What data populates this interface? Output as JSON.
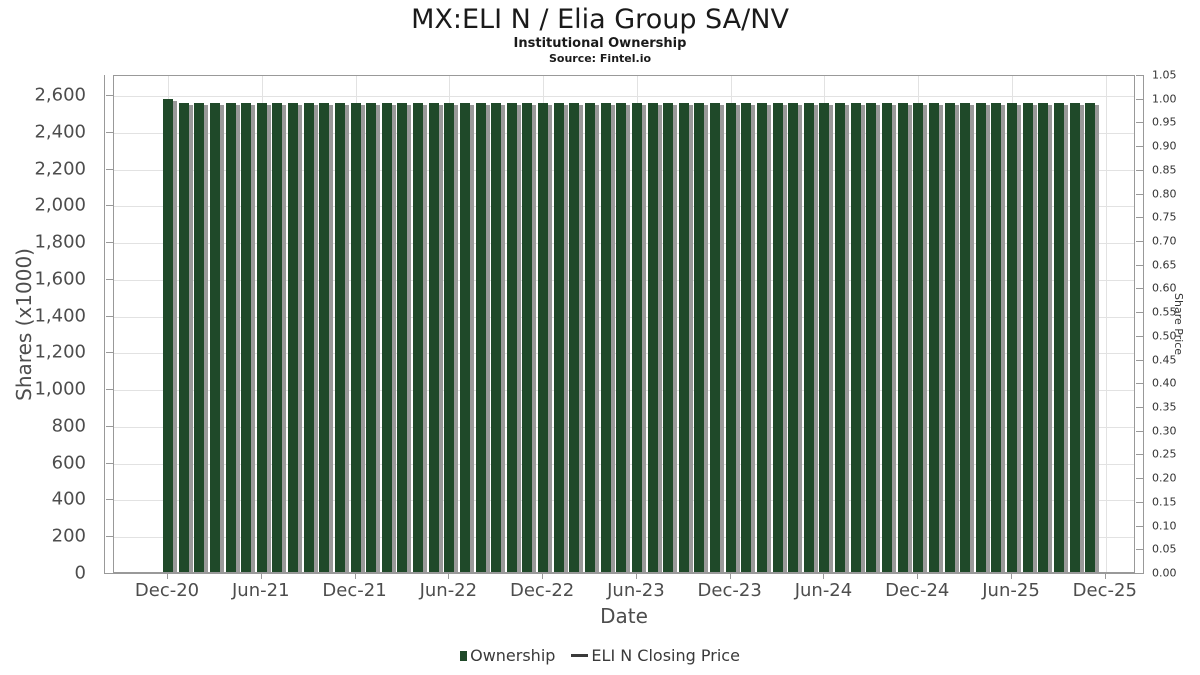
{
  "title": "MX:ELI N / Elia Group SA/NV",
  "subtitle": "Institutional Ownership",
  "source": "Source: Fintel.io",
  "colors": {
    "bar": "#1f4929",
    "bar_shadow": "#999999",
    "grid": "#e2e2e2",
    "axis": "#999999",
    "tick_text": "#4d4d4d",
    "legend_text": "#3a3a3a",
    "line_swatch": "#3a3a3a"
  },
  "chart_data": {
    "type": "bar",
    "title": "MX:ELI N / Elia Group SA/NV",
    "subtitle": "Institutional Ownership",
    "source": "Source: Fintel.io",
    "xlabel": "Date",
    "grid": true,
    "legend_position": "bottom",
    "x_tick_labels": [
      "Dec-20",
      "Jun-21",
      "Dec-21",
      "Jun-22",
      "Dec-22",
      "Jun-23",
      "Dec-23",
      "Jun-24",
      "Dec-24",
      "Jun-25",
      "Dec-25"
    ],
    "x_tick_month_index": [
      0,
      6,
      12,
      18,
      24,
      30,
      36,
      42,
      48,
      54,
      60
    ],
    "left_axis": {
      "title": "Shares (x1000)",
      "tick_labels": [
        "0",
        "200",
        "400",
        "600",
        "800",
        "1,000",
        "1,200",
        "1,400",
        "1,600",
        "1,800",
        "2,000",
        "2,200",
        "2,400",
        "2,600"
      ],
      "tick_values": [
        0,
        200,
        400,
        600,
        800,
        1000,
        1200,
        1400,
        1600,
        1800,
        2000,
        2200,
        2400,
        2600
      ],
      "min": 0,
      "max": 2710
    },
    "right_axis": {
      "title": "Share Price",
      "tick_labels": [
        "0.00",
        "0.05",
        "0.10",
        "0.15",
        "0.20",
        "0.25",
        "0.30",
        "0.35",
        "0.40",
        "0.45",
        "0.50",
        "0.55",
        "0.60",
        "0.65",
        "0.70",
        "0.75",
        "0.80",
        "0.85",
        "0.90",
        "0.95",
        "1.00",
        "1.05"
      ],
      "min": 0,
      "max": 1.05
    },
    "series": [
      {
        "name": "Ownership",
        "type": "bar",
        "color": "#1f4929",
        "frequency": "monthly",
        "start_month": "Dec-20",
        "end_month": "Nov-25",
        "months": [
          "Dec-20",
          "Jan-21",
          "Feb-21",
          "Mar-21",
          "Apr-21",
          "May-21",
          "Jun-21",
          "Jul-21",
          "Aug-21",
          "Sep-21",
          "Oct-21",
          "Nov-21",
          "Dec-21",
          "Jan-22",
          "Feb-22",
          "Mar-22",
          "Apr-22",
          "May-22",
          "Jun-22",
          "Jul-22",
          "Aug-22",
          "Sep-22",
          "Oct-22",
          "Nov-22",
          "Dec-22",
          "Jan-23",
          "Feb-23",
          "Mar-23",
          "Apr-23",
          "May-23",
          "Jun-23",
          "Jul-23",
          "Aug-23",
          "Sep-23",
          "Oct-23",
          "Nov-23",
          "Dec-23",
          "Jan-24",
          "Feb-24",
          "Mar-24",
          "Apr-24",
          "May-24",
          "Jun-24",
          "Jul-24",
          "Aug-24",
          "Sep-24",
          "Oct-24",
          "Nov-24",
          "Dec-24",
          "Jan-25",
          "Feb-25",
          "Mar-25",
          "Apr-25",
          "May-25",
          "Jun-25",
          "Jul-25",
          "Aug-25",
          "Sep-25",
          "Oct-25",
          "Nov-25"
        ],
        "values": [
          2575,
          2550,
          2550,
          2550,
          2550,
          2550,
          2550,
          2550,
          2550,
          2550,
          2550,
          2550,
          2550,
          2550,
          2550,
          2550,
          2550,
          2550,
          2550,
          2550,
          2550,
          2550,
          2550,
          2550,
          2550,
          2550,
          2550,
          2550,
          2550,
          2550,
          2550,
          2550,
          2550,
          2550,
          2550,
          2550,
          2550,
          2550,
          2550,
          2550,
          2550,
          2550,
          2550,
          2550,
          2550,
          2550,
          2550,
          2550,
          2550,
          2550,
          2550,
          2550,
          2550,
          2550,
          2550,
          2550,
          2550,
          2550,
          2550,
          2550
        ]
      },
      {
        "name": "ELI N Closing Price",
        "type": "line",
        "color": "#3a3a3a",
        "values": []
      }
    ]
  }
}
